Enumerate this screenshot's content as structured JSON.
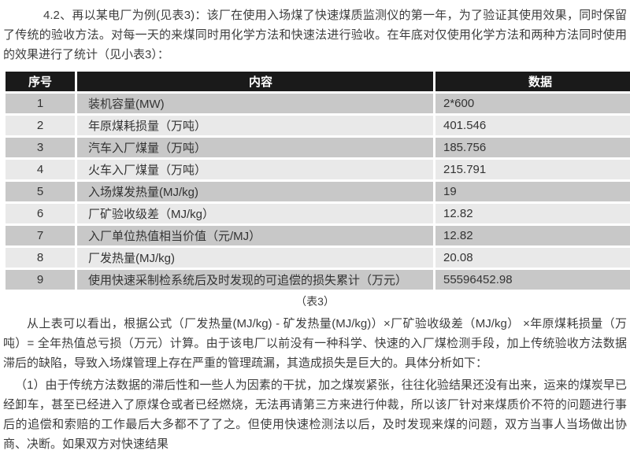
{
  "page": {
    "intro_paragraph": "4.2、再以某电厂为例(见表3)：该厂在使用入场煤了快速煤质监测仪的第一年，为了验证其使用效果，同时保留了传统的验收方法。对每一天的来煤同时用化学方法和快速法进行验收。在年底对仅使用化学方法和两种方法同时使用的效果进行了统计（见小表3）：",
    "table": {
      "headers": [
        "序号",
        "内容",
        "数据"
      ],
      "rows": [
        [
          "1",
          "装机容量(MW)",
          "2*600"
        ],
        [
          "2",
          "年原煤耗损量（万吨）",
          "401.546"
        ],
        [
          "3",
          "汽车入厂煤量（万吨）",
          "185.756"
        ],
        [
          "4",
          "火车入厂煤量（万吨）",
          "215.791"
        ],
        [
          "5",
          "入场煤发热量(MJ/kg)",
          "19"
        ],
        [
          "6",
          "厂矿验收级差（MJ/kg）",
          "12.82"
        ],
        [
          "7",
          "入厂单位热值相当价值（元/MJ）",
          "12.82"
        ],
        [
          "8",
          "厂发热量(MJ/kg)",
          "20.08"
        ],
        [
          "9",
          "使用快速采制检系统后及时发现的可追偿的损失累计（万元）",
          "55596452.98"
        ]
      ],
      "caption": "（表3）"
    },
    "analysis_paragraph": "从上表可以看出，根据公式（厂发热量(MJ/kg) - 矿发热量(MJ/kg)）×厂矿验收级差（MJ/kg） ×年原煤耗损量（万吨）= 全年热值总亏损（万元）计算。由于该电厂以前没有一种科学、快速的入厂煤检测手段，加上传统验收方法数据滞后的缺陷，导致入场煤管理上存在严重的管理疏漏，其造成损失是巨大的。具体分析如下：",
    "point1_paragraph": "（1）由于传统方法数据的滞后性和一些人为因素的干扰，加之煤炭紧张，往往化验结果还没有出来，运来的煤炭早已经卸车，甚至已经进入了原煤仓或者已经燃烧，无法再请第三方来进行仲裁，所以该厂针对来煤质价不符的问题进行事后的追偿和索赔的工作最后大多都不了了之。但使用快速检测法以后，及时发现来煤的问题，双方当事人当场做出协商、决断。如果双方对快速结果"
  },
  "colors": {
    "header_bg": "#1a1a1a",
    "header_text": "#ffffff",
    "row_odd_bg": "#c8c8c8",
    "row_even_bg": "#e9e9e9",
    "body_text": "#3d3d3d"
  }
}
